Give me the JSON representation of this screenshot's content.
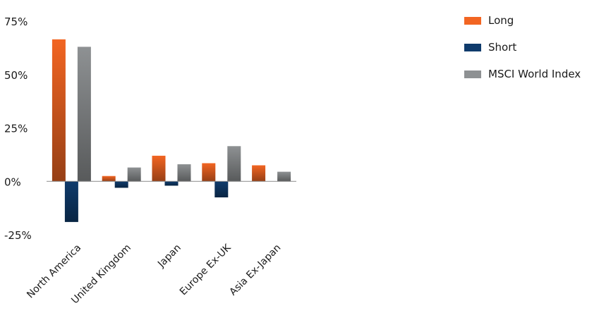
{
  "chart_data": {
    "type": "bar",
    "categories": [
      "North America",
      "United Kingdom",
      "Japan",
      "Europe Ex-UK",
      "Asia Ex-Japan"
    ],
    "series": [
      {
        "name": "Long",
        "values": [
          66.5,
          2.5,
          12,
          8.5,
          7.5
        ],
        "color": "#f26522"
      },
      {
        "name": "Short",
        "values": [
          -19,
          -3,
          -2,
          -7.5,
          0
        ],
        "color": "#0f3b6c"
      },
      {
        "name": "MSCI World Index",
        "values": [
          63,
          6.5,
          8,
          16.5,
          4.5
        ],
        "color": "#8e9193"
      }
    ],
    "ylim": [
      -25,
      75
    ],
    "yticks": [
      -25,
      0,
      25,
      50,
      75
    ],
    "ytick_labels": [
      "-25%",
      "0%",
      "25%",
      "50%",
      "75%"
    ],
    "xlabel": "",
    "ylabel": "",
    "grid": false,
    "legend_position": "top-right",
    "baseline_color": "#8a8a8a"
  }
}
